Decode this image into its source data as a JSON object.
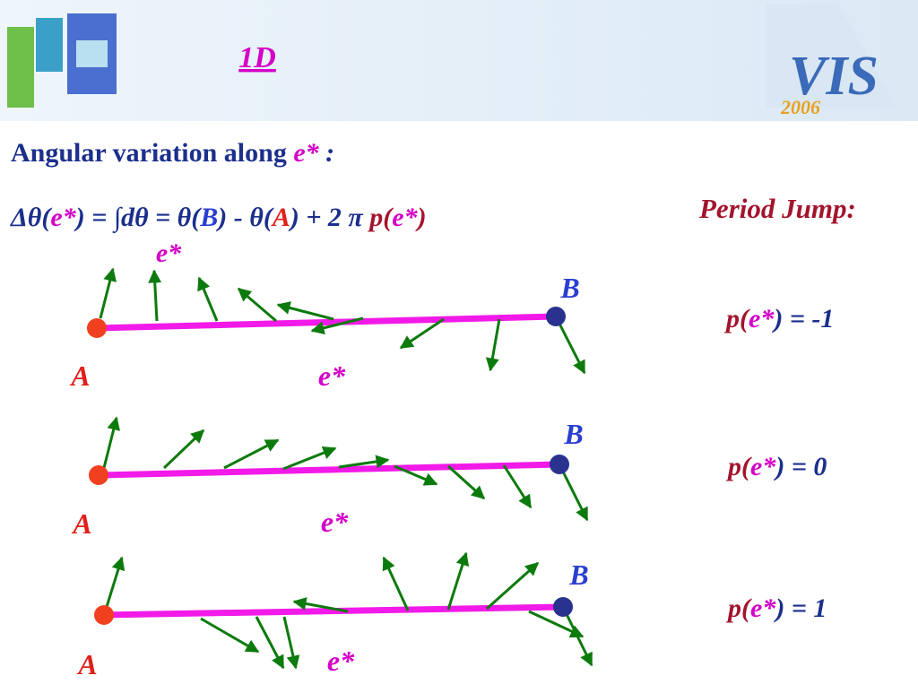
{
  "header": {
    "title": "1D"
  },
  "logo_right": {
    "text": "VIS",
    "year": "2006"
  },
  "heading": {
    "text": "Angular variation along",
    "symbol": "e*",
    "colon": ":"
  },
  "formula": [
    "Δθ(",
    "e*",
    ")",
    "= ∫dθ = θ(",
    "B",
    ") - θ(",
    "A",
    ") + 2 π",
    "p(",
    "e*",
    ")"
  ],
  "period_jump": {
    "title": "Period Jump:"
  },
  "top_label": "e*",
  "rows": [
    {
      "a": "A",
      "b": "B",
      "e": "e*",
      "jump": {
        "prefix": "p(",
        "symbol": "e*",
        "suffix": ") = -1"
      }
    },
    {
      "a": "A",
      "b": "B",
      "e": "e*",
      "jump": {
        "prefix": "p(",
        "symbol": "e*",
        "suffix": ") = 0"
      }
    },
    {
      "a": "A",
      "b": "B",
      "e": "e*",
      "jump": {
        "prefix": "p(",
        "symbol": "e*",
        "suffix": ") = 1"
      }
    }
  ]
}
